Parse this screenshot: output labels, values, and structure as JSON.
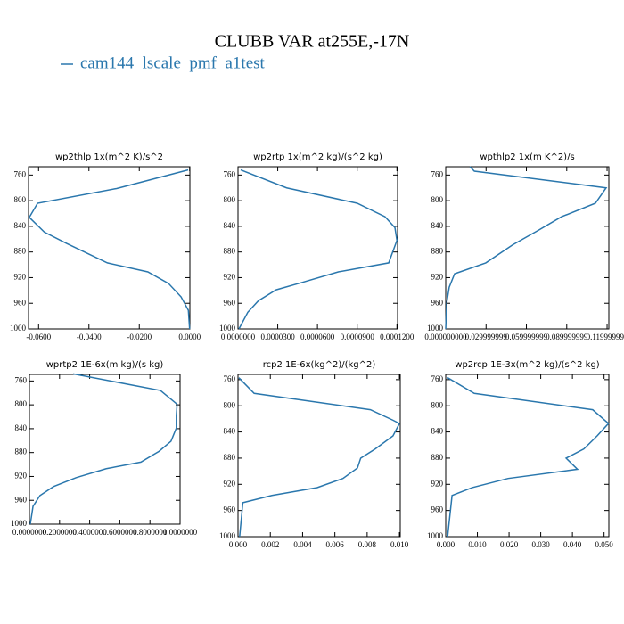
{
  "title": "CLUBB VAR at255E,-17N",
  "legend": {
    "name": "cam144_lscale_pmf_a1test",
    "color": "#2a77ad"
  },
  "chart_data": [
    {
      "type": "line",
      "title": "wp2thlp   1x(m^2 K)/s^2",
      "color": "#2a77ad",
      "levels": [
        752,
        781,
        804,
        826,
        849,
        867,
        897,
        911,
        929,
        950,
        971,
        1000
      ],
      "values": [
        -0.0006,
        -0.029,
        -0.0604,
        -0.0637,
        -0.0577,
        -0.0487,
        -0.0327,
        -0.0166,
        -0.0084,
        -0.0034,
        -0.0005,
        0
      ],
      "xlim": [
        -0.064,
        0.0001
      ],
      "ylim": [
        1000,
        747
      ],
      "xticks": [
        {
          "value": -0.06,
          "label": "-0.0600"
        },
        {
          "value": -0.04,
          "label": "-0.0400"
        },
        {
          "value": -0.02,
          "label": "-0.0200"
        },
        {
          "value": 0,
          "label": "0.0000"
        }
      ],
      "yticks": [
        760,
        800,
        840,
        880,
        920,
        960,
        1000
      ]
    },
    {
      "type": "line",
      "title": "wp2rtp   1x(m^2 kg)/(s^2 kg)",
      "color": "#2a77ad",
      "levels": [
        752,
        780,
        804,
        825,
        842,
        862,
        897,
        911,
        928,
        939,
        956,
        974,
        1000
      ],
      "values": [
        2e-06,
        3.67e-05,
        9e-05,
        0.000111,
        0.0001185,
        0.00012,
        0.0001138,
        7.57e-05,
        4.76e-05,
        2.88e-05,
        1.54e-05,
        7.4e-06,
        7e-07
      ],
      "xlim": [
        0,
        0.0001205
      ],
      "ylim": [
        1000,
        747
      ],
      "xticks": [
        {
          "value": 0,
          "label": "0.0000000"
        },
        {
          "value": 3e-05,
          "label": "0.0000300"
        },
        {
          "value": 6e-05,
          "label": "0.0000600"
        },
        {
          "value": 9e-05,
          "label": "0.0000900"
        },
        {
          "value": 0.00012,
          "label": "0.0001200"
        }
      ],
      "yticks": [
        760,
        800,
        840,
        880,
        920,
        960,
        1000
      ]
    },
    {
      "type": "line",
      "title": "wpthlp2   1x(m K^2)/s",
      "color": "#2a77ad",
      "levels": [
        747,
        754,
        780,
        804,
        825,
        846,
        869,
        897,
        914,
        935,
        960,
        1000
      ],
      "values": [
        0.018,
        0.0213,
        0.1193,
        0.1113,
        0.0862,
        0.069,
        0.0497,
        0.0298,
        0.0066,
        0.0026,
        0.0007,
        0
      ],
      "xlim": [
        0,
        0.1213
      ],
      "ylim": [
        1000,
        747
      ],
      "xticks": [
        {
          "value": 0,
          "label": "0.000000000"
        },
        {
          "value": 0.03,
          "label": "0.029999999"
        },
        {
          "value": 0.06,
          "label": "0.059999999"
        },
        {
          "value": 0.09,
          "label": "0.089999999"
        },
        {
          "value": 0.12,
          "label": "0.119999990"
        }
      ],
      "yticks": [
        760,
        800,
        840,
        880,
        920,
        960,
        1000
      ]
    },
    {
      "type": "line",
      "title": "wprtp2   1E-6x(m kg)/(s kg)",
      "color": "#2a77ad",
      "levels": [
        748,
        776,
        799,
        818,
        839,
        861,
        878,
        896,
        907,
        922,
        937,
        952,
        970,
        1000
      ],
      "values": [
        0.29,
        0.87,
        0.98,
        0.975,
        0.975,
        0.94,
        0.86,
        0.74,
        0.51,
        0.31,
        0.16,
        0.07,
        0.024,
        0.006
      ],
      "xlim": [
        0,
        1
      ],
      "ylim": [
        1000,
        749
      ],
      "xticks": [
        {
          "value": 0,
          "label": "0.0000000"
        },
        {
          "value": 0.2,
          "label": "0.2000000"
        },
        {
          "value": 0.4,
          "label": "0.4000000"
        },
        {
          "value": 0.6,
          "label": "0.6000000"
        },
        {
          "value": 0.8,
          "label": "0.8000000"
        },
        {
          "value": 1,
          "label": "1.0000000"
        }
      ],
      "yticks": [
        760,
        800,
        840,
        880,
        920,
        960,
        1000
      ]
    },
    {
      "type": "line",
      "title": "rcp2   1E-6x(kg^2)/(kg^2)",
      "color": "#2a77ad",
      "levels": [
        757,
        781,
        806,
        822,
        827,
        846,
        866,
        880,
        895,
        911,
        925,
        937,
        948,
        1000
      ],
      "values": [
        5e-05,
        0.001,
        0.0082,
        0.0096,
        0.01,
        0.0096,
        0.0085,
        0.0076,
        0.0074,
        0.0065,
        0.0049,
        0.0021,
        0.0003,
        0.0001
      ],
      "xlim": [
        0,
        0.01005
      ],
      "ylim": [
        1000,
        752
      ],
      "xticks": [
        {
          "value": 0,
          "label": "0.000"
        },
        {
          "value": 0.002,
          "label": "0.002"
        },
        {
          "value": 0.004,
          "label": "0.004"
        },
        {
          "value": 0.006,
          "label": "0.006"
        },
        {
          "value": 0.008,
          "label": "0.008"
        },
        {
          "value": 0.01,
          "label": "0.010"
        }
      ],
      "yticks": [
        760,
        800,
        840,
        880,
        920,
        960,
        1000
      ]
    },
    {
      "type": "line",
      "title": "wp2rcp   1E-3x(m^2 kg)/(s^2 kg)",
      "color": "#2a77ad",
      "levels": [
        757,
        781,
        806,
        827,
        846,
        866,
        880,
        897,
        911,
        925,
        937,
        1000
      ],
      "values": [
        0.0006,
        0.009,
        0.0464,
        0.0514,
        0.0478,
        0.0436,
        0.038,
        0.0416,
        0.0197,
        0.0084,
        0.002,
        0.0006
      ],
      "xlim": [
        0,
        0.0515
      ],
      "ylim": [
        1000,
        752
      ],
      "xticks": [
        {
          "value": 0,
          "label": "0.000"
        },
        {
          "value": 0.01,
          "label": "0.010"
        },
        {
          "value": 0.02,
          "label": "0.020"
        },
        {
          "value": 0.03,
          "label": "0.030"
        },
        {
          "value": 0.04,
          "label": "0.040"
        },
        {
          "value": 0.05,
          "label": "0.050"
        }
      ],
      "yticks": [
        760,
        800,
        840,
        880,
        920,
        960,
        1000
      ]
    }
  ]
}
